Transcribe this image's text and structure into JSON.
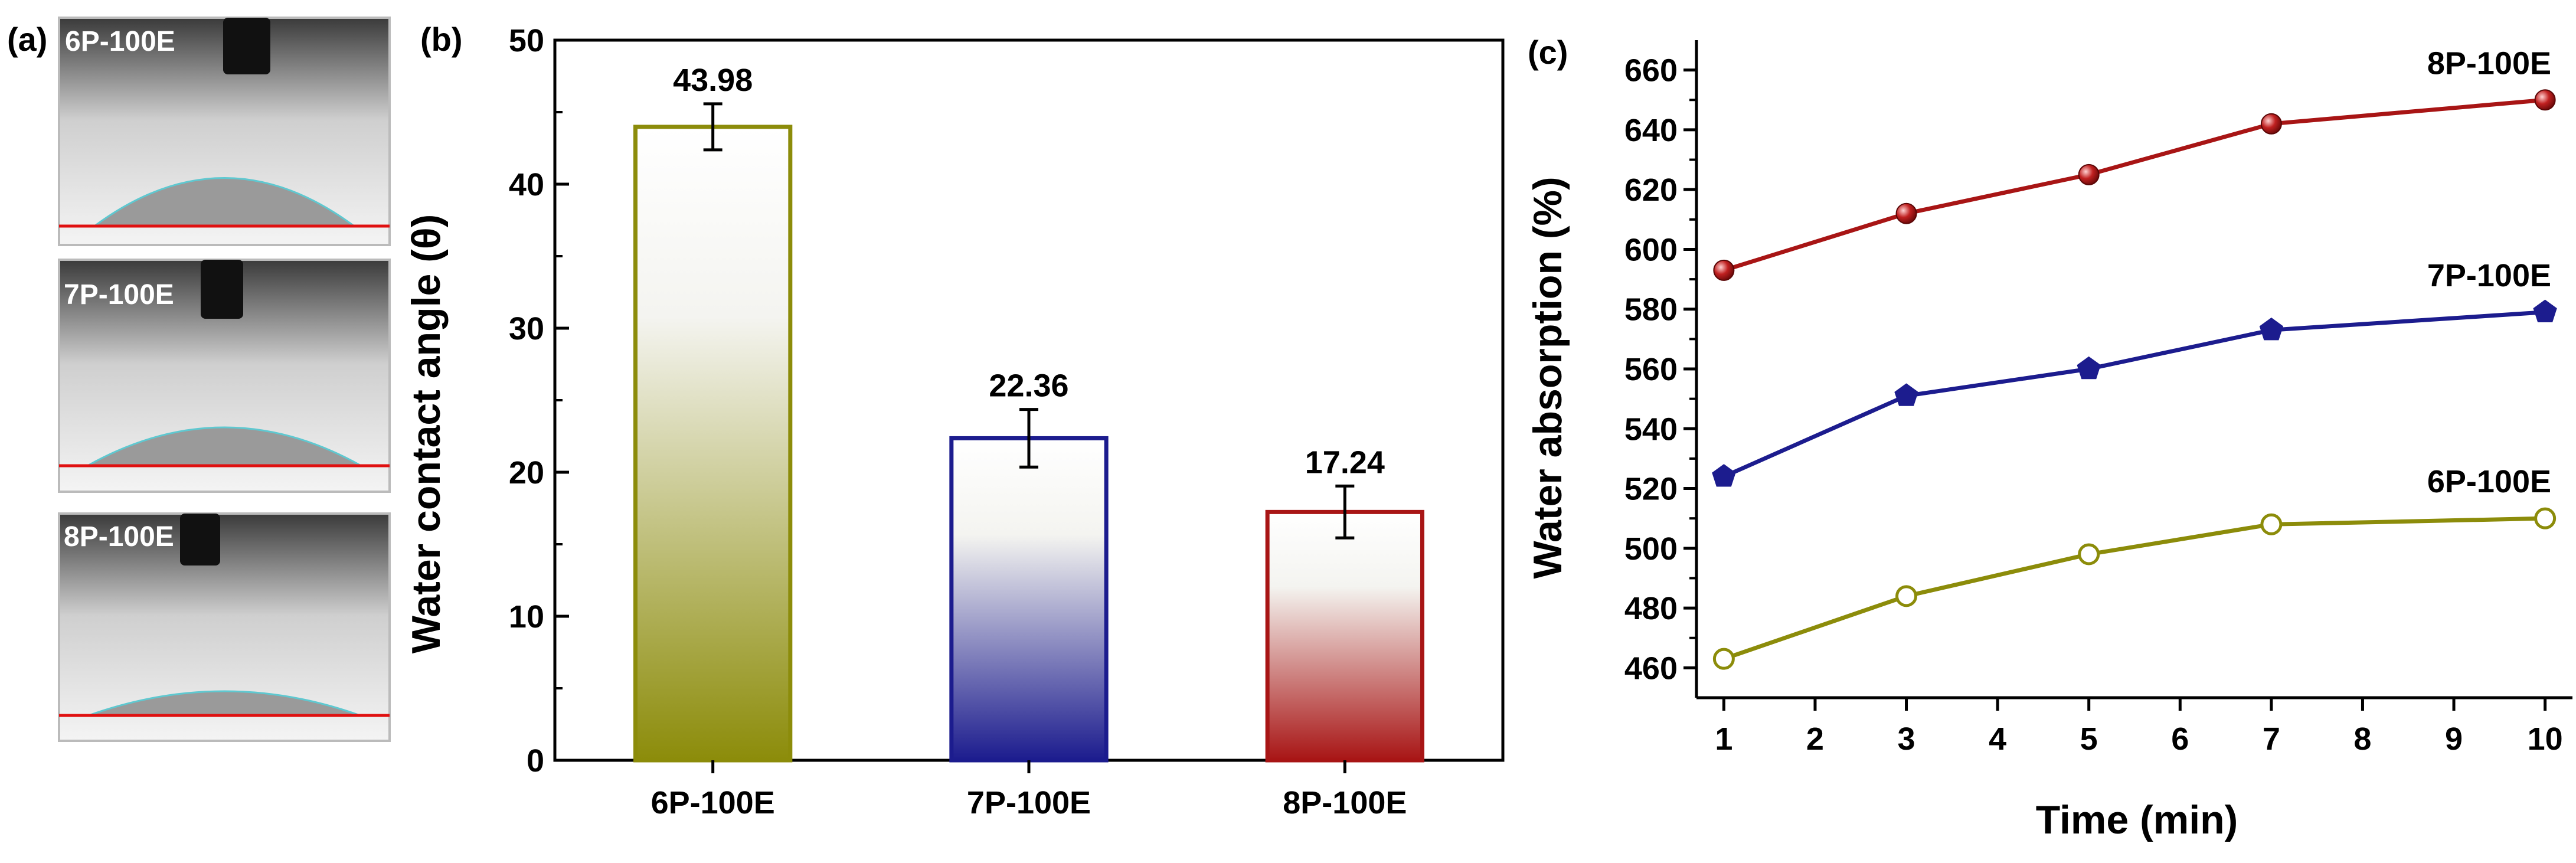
{
  "panels": {
    "a": {
      "label": "(a)",
      "photos": [
        {
          "label": "6P-100E"
        },
        {
          "label": "7P-100E"
        },
        {
          "label": "8P-100E"
        }
      ]
    },
    "b": {
      "label": "(b)"
    },
    "c": {
      "label": "(c)"
    }
  },
  "colors": {
    "olive": "#8c8c0a",
    "navy": "#1c1c8e",
    "darkred": "#a81515",
    "baseline": "#e01010"
  },
  "chart_data": [
    {
      "id": "b",
      "type": "bar",
      "categories": [
        "6P-100E",
        "7P-100E",
        "8P-100E"
      ],
      "values": [
        43.98,
        22.36,
        17.24
      ],
      "errors": [
        1.6,
        2.0,
        1.8
      ],
      "value_labels": [
        "43.98",
        "22.36",
        "17.24"
      ],
      "colors": [
        "#8c8c0a",
        "#1c1c8e",
        "#a81515"
      ],
      "title": "",
      "xlabel": "",
      "ylabel": "Water contact angle (θ)",
      "ylim": [
        0,
        50
      ],
      "yticks": [
        0,
        10,
        20,
        30,
        40,
        50
      ],
      "grid": false
    },
    {
      "id": "c",
      "type": "line",
      "xlabel": "Time (min)",
      "ylabel": "Water absorption (%)",
      "xlim": [
        0.7,
        10.3
      ],
      "ylim": [
        450,
        670
      ],
      "xticks": [
        1,
        2,
        3,
        4,
        5,
        6,
        7,
        8,
        9,
        10
      ],
      "yticks": [
        460,
        480,
        500,
        520,
        540,
        560,
        580,
        600,
        620,
        640,
        660
      ],
      "grid": false,
      "series": [
        {
          "name": "8P-100E",
          "color": "#a81515",
          "marker": "sphere",
          "x": [
            1,
            3,
            5,
            7,
            10
          ],
          "y": [
            593,
            612,
            625,
            642,
            650
          ]
        },
        {
          "name": "7P-100E",
          "color": "#1c1c8e",
          "marker": "pentagon",
          "x": [
            1,
            3,
            5,
            7,
            10
          ],
          "y": [
            524,
            551,
            560,
            573,
            579
          ]
        },
        {
          "name": "6P-100E",
          "color": "#8c8c0a",
          "marker": "open-circle",
          "x": [
            1,
            3,
            5,
            7,
            10
          ],
          "y": [
            463,
            484,
            498,
            508,
            510
          ]
        }
      ]
    }
  ]
}
